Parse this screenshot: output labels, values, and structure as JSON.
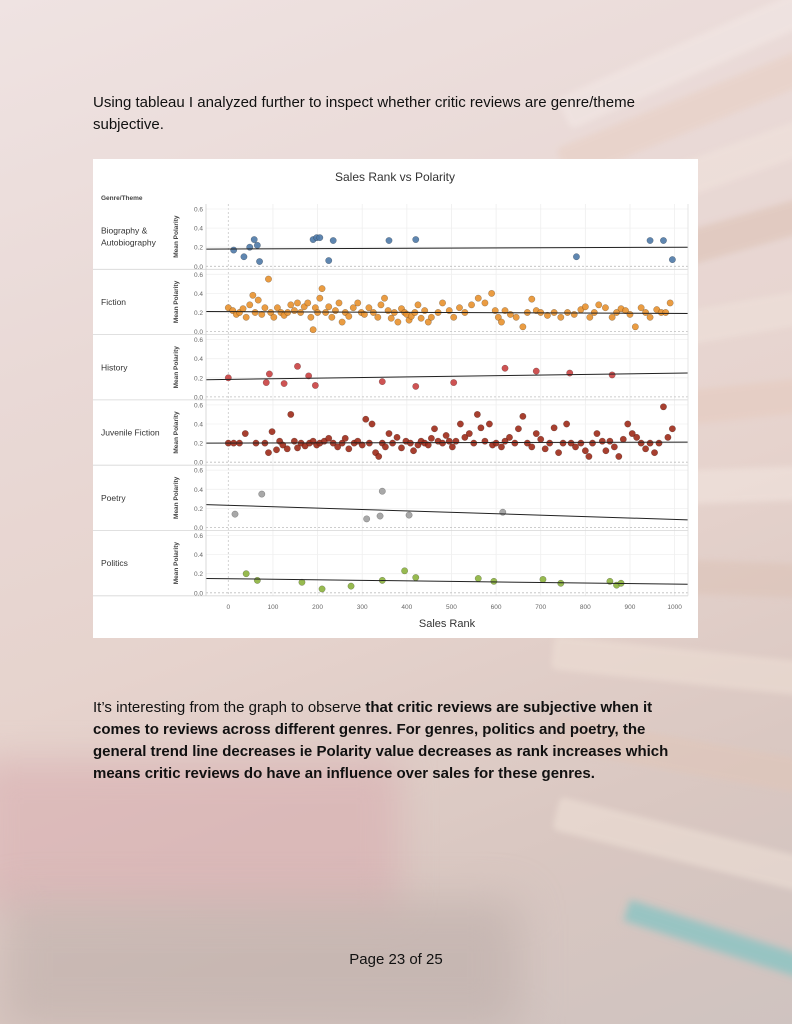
{
  "intro_text": "Using tableau I analyzed further to inspect whether critic reviews are genre/theme subjective.",
  "body": {
    "plain": "It’s interesting from the graph to observe ",
    "bold": "that critic reviews are subjective when it comes to reviews across different genres. For genres, politics and poetry, the general trend line decreases ie Polarity value decreases as rank increases which means critic reviews do have an influence over sales for these genres."
  },
  "footer": "Page 23 of 25",
  "chart_data": {
    "type": "scatter",
    "title": "Sales Rank vs Polarity",
    "xlabel": "Sales Rank",
    "ylabel": "Mean Polarity",
    "row_header": "Genre/Theme",
    "xlim": [
      -50,
      1030
    ],
    "ylim": [
      0,
      0.6
    ],
    "x_ticks": [
      0,
      100,
      200,
      300,
      400,
      500,
      600,
      700,
      800,
      900,
      1000
    ],
    "y_ticks": [
      "0.0",
      "0.2",
      "0.4",
      "0.6"
    ],
    "grid": true,
    "series": [
      {
        "name": "Biography & Autobiography",
        "color": "#4e79a7",
        "trend": [
          0.18,
          0.2
        ],
        "points": [
          [
            12,
            0.17
          ],
          [
            35,
            0.1
          ],
          [
            48,
            0.2
          ],
          [
            58,
            0.28
          ],
          [
            65,
            0.22
          ],
          [
            70,
            0.05
          ],
          [
            190,
            0.28
          ],
          [
            198,
            0.3
          ],
          [
            205,
            0.3
          ],
          [
            225,
            0.06
          ],
          [
            235,
            0.27
          ],
          [
            360,
            0.27
          ],
          [
            420,
            0.28
          ],
          [
            780,
            0.1
          ],
          [
            945,
            0.27
          ],
          [
            975,
            0.27
          ],
          [
            995,
            0.07
          ]
        ]
      },
      {
        "name": "Fiction",
        "color": "#e8912d",
        "trend": [
          0.21,
          0.19
        ],
        "points": [
          [
            0,
            0.25
          ],
          [
            10,
            0.22
          ],
          [
            18,
            0.18
          ],
          [
            25,
            0.2
          ],
          [
            33,
            0.24
          ],
          [
            40,
            0.15
          ],
          [
            48,
            0.28
          ],
          [
            55,
            0.38
          ],
          [
            60,
            0.2
          ],
          [
            67,
            0.33
          ],
          [
            75,
            0.18
          ],
          [
            82,
            0.25
          ],
          [
            90,
            0.55
          ],
          [
            95,
            0.2
          ],
          [
            102,
            0.15
          ],
          [
            110,
            0.25
          ],
          [
            118,
            0.2
          ],
          [
            125,
            0.17
          ],
          [
            133,
            0.2
          ],
          [
            140,
            0.28
          ],
          [
            148,
            0.22
          ],
          [
            155,
            0.3
          ],
          [
            162,
            0.2
          ],
          [
            170,
            0.26
          ],
          [
            178,
            0.3
          ],
          [
            185,
            0.15
          ],
          [
            190,
            0.02
          ],
          [
            195,
            0.25
          ],
          [
            200,
            0.2
          ],
          [
            205,
            0.35
          ],
          [
            210,
            0.45
          ],
          [
            218,
            0.2
          ],
          [
            225,
            0.26
          ],
          [
            232,
            0.15
          ],
          [
            240,
            0.22
          ],
          [
            248,
            0.3
          ],
          [
            255,
            0.1
          ],
          [
            262,
            0.2
          ],
          [
            270,
            0.16
          ],
          [
            280,
            0.25
          ],
          [
            290,
            0.3
          ],
          [
            298,
            0.2
          ],
          [
            305,
            0.18
          ],
          [
            315,
            0.25
          ],
          [
            325,
            0.2
          ],
          [
            335,
            0.15
          ],
          [
            342,
            0.28
          ],
          [
            350,
            0.35
          ],
          [
            358,
            0.22
          ],
          [
            365,
            0.14
          ],
          [
            372,
            0.2
          ],
          [
            380,
            0.1
          ],
          [
            388,
            0.24
          ],
          [
            395,
            0.2
          ],
          [
            400,
            0.18
          ],
          [
            405,
            0.12
          ],
          [
            410,
            0.16
          ],
          [
            418,
            0.2
          ],
          [
            425,
            0.28
          ],
          [
            432,
            0.14
          ],
          [
            440,
            0.22
          ],
          [
            448,
            0.1
          ],
          [
            455,
            0.15
          ],
          [
            470,
            0.2
          ],
          [
            480,
            0.3
          ],
          [
            495,
            0.22
          ],
          [
            505,
            0.15
          ],
          [
            518,
            0.25
          ],
          [
            530,
            0.2
          ],
          [
            545,
            0.28
          ],
          [
            560,
            0.35
          ],
          [
            575,
            0.3
          ],
          [
            590,
            0.4
          ],
          [
            598,
            0.22
          ],
          [
            605,
            0.15
          ],
          [
            612,
            0.1
          ],
          [
            620,
            0.22
          ],
          [
            632,
            0.18
          ],
          [
            645,
            0.15
          ],
          [
            660,
            0.05
          ],
          [
            670,
            0.2
          ],
          [
            680,
            0.34
          ],
          [
            690,
            0.22
          ],
          [
            700,
            0.2
          ],
          [
            715,
            0.17
          ],
          [
            730,
            0.2
          ],
          [
            745,
            0.15
          ],
          [
            760,
            0.2
          ],
          [
            775,
            0.18
          ],
          [
            790,
            0.23
          ],
          [
            800,
            0.26
          ],
          [
            810,
            0.15
          ],
          [
            820,
            0.2
          ],
          [
            830,
            0.28
          ],
          [
            845,
            0.25
          ],
          [
            860,
            0.15
          ],
          [
            870,
            0.2
          ],
          [
            880,
            0.24
          ],
          [
            890,
            0.22
          ],
          [
            900,
            0.18
          ],
          [
            912,
            0.05
          ],
          [
            925,
            0.25
          ],
          [
            935,
            0.2
          ],
          [
            945,
            0.15
          ],
          [
            960,
            0.23
          ],
          [
            970,
            0.2
          ],
          [
            980,
            0.2
          ],
          [
            990,
            0.3
          ]
        ]
      },
      {
        "name": "History",
        "color": "#c94040",
        "trend": [
          0.18,
          0.25
        ],
        "points": [
          [
            0,
            0.2
          ],
          [
            85,
            0.15
          ],
          [
            92,
            0.24
          ],
          [
            125,
            0.14
          ],
          [
            155,
            0.32
          ],
          [
            180,
            0.22
          ],
          [
            195,
            0.12
          ],
          [
            345,
            0.16
          ],
          [
            420,
            0.11
          ],
          [
            505,
            0.15
          ],
          [
            620,
            0.3
          ],
          [
            690,
            0.27
          ],
          [
            765,
            0.25
          ],
          [
            860,
            0.23
          ]
        ]
      },
      {
        "name": "Juvenile Fiction",
        "color": "#9d2a18",
        "trend": [
          0.2,
          0.21
        ],
        "points": [
          [
            0,
            0.2
          ],
          [
            12,
            0.2
          ],
          [
            25,
            0.2
          ],
          [
            38,
            0.3
          ],
          [
            62,
            0.2
          ],
          [
            82,
            0.2
          ],
          [
            90,
            0.1
          ],
          [
            98,
            0.32
          ],
          [
            108,
            0.13
          ],
          [
            115,
            0.22
          ],
          [
            122,
            0.18
          ],
          [
            132,
            0.14
          ],
          [
            140,
            0.5
          ],
          [
            148,
            0.22
          ],
          [
            155,
            0.15
          ],
          [
            163,
            0.2
          ],
          [
            172,
            0.17
          ],
          [
            182,
            0.2
          ],
          [
            190,
            0.22
          ],
          [
            198,
            0.18
          ],
          [
            205,
            0.2
          ],
          [
            215,
            0.22
          ],
          [
            225,
            0.25
          ],
          [
            235,
            0.2
          ],
          [
            245,
            0.16
          ],
          [
            255,
            0.2
          ],
          [
            262,
            0.25
          ],
          [
            270,
            0.14
          ],
          [
            282,
            0.2
          ],
          [
            290,
            0.22
          ],
          [
            300,
            0.18
          ],
          [
            308,
            0.45
          ],
          [
            316,
            0.2
          ],
          [
            322,
            0.4
          ],
          [
            330,
            0.1
          ],
          [
            337,
            0.06
          ],
          [
            345,
            0.2
          ],
          [
            352,
            0.16
          ],
          [
            360,
            0.3
          ],
          [
            368,
            0.2
          ],
          [
            378,
            0.26
          ],
          [
            388,
            0.15
          ],
          [
            398,
            0.22
          ],
          [
            408,
            0.2
          ],
          [
            415,
            0.12
          ],
          [
            425,
            0.18
          ],
          [
            432,
            0.22
          ],
          [
            440,
            0.2
          ],
          [
            448,
            0.18
          ],
          [
            455,
            0.25
          ],
          [
            462,
            0.35
          ],
          [
            470,
            0.22
          ],
          [
            480,
            0.2
          ],
          [
            488,
            0.28
          ],
          [
            495,
            0.22
          ],
          [
            502,
            0.16
          ],
          [
            510,
            0.22
          ],
          [
            520,
            0.4
          ],
          [
            530,
            0.26
          ],
          [
            540,
            0.3
          ],
          [
            550,
            0.2
          ],
          [
            558,
            0.5
          ],
          [
            566,
            0.36
          ],
          [
            575,
            0.22
          ],
          [
            585,
            0.4
          ],
          [
            592,
            0.18
          ],
          [
            600,
            0.2
          ],
          [
            612,
            0.16
          ],
          [
            620,
            0.22
          ],
          [
            630,
            0.26
          ],
          [
            642,
            0.2
          ],
          [
            650,
            0.35
          ],
          [
            660,
            0.48
          ],
          [
            670,
            0.2
          ],
          [
            680,
            0.16
          ],
          [
            690,
            0.3
          ],
          [
            700,
            0.24
          ],
          [
            710,
            0.14
          ],
          [
            720,
            0.2
          ],
          [
            730,
            0.36
          ],
          [
            740,
            0.1
          ],
          [
            750,
            0.2
          ],
          [
            758,
            0.4
          ],
          [
            768,
            0.2
          ],
          [
            778,
            0.16
          ],
          [
            790,
            0.2
          ],
          [
            800,
            0.12
          ],
          [
            808,
            0.06
          ],
          [
            816,
            0.2
          ],
          [
            826,
            0.3
          ],
          [
            838,
            0.22
          ],
          [
            846,
            0.12
          ],
          [
            855,
            0.22
          ],
          [
            865,
            0.16
          ],
          [
            875,
            0.06
          ],
          [
            885,
            0.24
          ],
          [
            895,
            0.4
          ],
          [
            905,
            0.3
          ],
          [
            915,
            0.26
          ],
          [
            925,
            0.2
          ],
          [
            935,
            0.14
          ],
          [
            945,
            0.2
          ],
          [
            955,
            0.1
          ],
          [
            965,
            0.2
          ],
          [
            975,
            0.58
          ],
          [
            985,
            0.26
          ],
          [
            995,
            0.35
          ]
        ]
      },
      {
        "name": "Poetry",
        "color": "#9e9e9e",
        "trend": [
          0.24,
          0.08
        ],
        "points": [
          [
            15,
            0.14
          ],
          [
            75,
            0.35
          ],
          [
            310,
            0.09
          ],
          [
            340,
            0.12
          ],
          [
            345,
            0.38
          ],
          [
            405,
            0.13
          ],
          [
            615,
            0.16
          ]
        ]
      },
      {
        "name": "Politics",
        "color": "#8cb33d",
        "trend": [
          0.15,
          0.09
        ],
        "points": [
          [
            40,
            0.2
          ],
          [
            65,
            0.13
          ],
          [
            165,
            0.11
          ],
          [
            210,
            0.04
          ],
          [
            275,
            0.07
          ],
          [
            345,
            0.13
          ],
          [
            395,
            0.23
          ],
          [
            420,
            0.16
          ],
          [
            560,
            0.15
          ],
          [
            595,
            0.12
          ],
          [
            705,
            0.14
          ],
          [
            745,
            0.1
          ],
          [
            855,
            0.12
          ],
          [
            870,
            0.08
          ],
          [
            880,
            0.1
          ]
        ]
      }
    ]
  }
}
